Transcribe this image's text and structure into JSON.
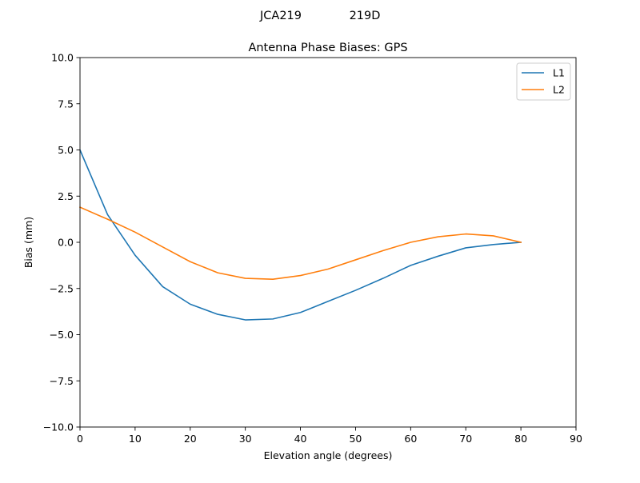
{
  "suptitle_left": "JCA219",
  "suptitle_right": "219D",
  "chart_data": {
    "type": "line",
    "title": "Antenna Phase Biases: GPS",
    "xlabel": "Elevation angle (degrees)",
    "ylabel": "Bias (mm)",
    "xlim": [
      0,
      90
    ],
    "ylim": [
      -10,
      10
    ],
    "xticks": [
      0,
      10,
      20,
      30,
      40,
      50,
      60,
      70,
      80,
      90
    ],
    "xtick_labels": [
      "0",
      "10",
      "20",
      "30",
      "40",
      "50",
      "60",
      "70",
      "80",
      "90"
    ],
    "yticks": [
      -10,
      -7.5,
      -5,
      -2.5,
      0,
      2.5,
      5,
      7.5,
      10
    ],
    "ytick_labels": [
      "−10.0",
      "−7.5",
      "−5.0",
      "−2.5",
      "0.0",
      "2.5",
      "5.0",
      "7.5",
      "10.0"
    ],
    "grid": false,
    "legend_position": "top-right",
    "x": [
      0,
      5,
      10,
      15,
      20,
      25,
      30,
      35,
      40,
      45,
      50,
      55,
      60,
      65,
      70,
      75,
      80
    ],
    "series": [
      {
        "name": "L1",
        "color": "#1f77b4",
        "values": [
          5.0,
          1.5,
          -0.7,
          -2.4,
          -3.35,
          -3.9,
          -4.2,
          -4.15,
          -3.8,
          -3.2,
          -2.6,
          -1.95,
          -1.25,
          -0.75,
          -0.3,
          -0.12,
          0.0
        ]
      },
      {
        "name": "L2",
        "color": "#ff7f0e",
        "values": [
          1.9,
          1.25,
          0.55,
          -0.25,
          -1.05,
          -1.65,
          -1.95,
          -2.0,
          -1.8,
          -1.45,
          -0.95,
          -0.45,
          0.0,
          0.3,
          0.45,
          0.35,
          0.0
        ]
      }
    ]
  }
}
